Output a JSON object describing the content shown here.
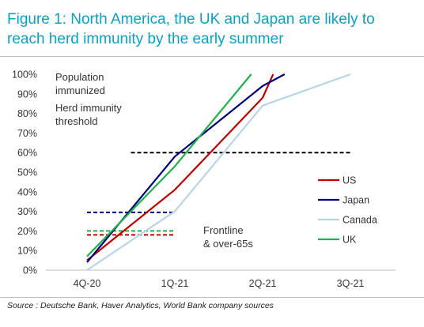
{
  "figure": {
    "title": "Figure 1: North America, the UK and Japan are likely to reach herd immunity by the early summer",
    "source": "Source : Deutsche Bank, Haver Analytics, World Bank company sources"
  },
  "chart_data": {
    "type": "line",
    "categories": [
      "4Q-20",
      "1Q-21",
      "2Q-21",
      "3Q-21"
    ],
    "xlim": [
      0,
      3
    ],
    "ylim": [
      0,
      100
    ],
    "yticks": [
      "0%",
      "10%",
      "20%",
      "30%",
      "40%",
      "50%",
      "60%",
      "70%",
      "80%",
      "90%",
      "100%"
    ],
    "grid": false,
    "legend": "right",
    "series": [
      {
        "name": "US",
        "color": "#c00000",
        "points": [
          [
            0,
            5
          ],
          [
            1,
            41
          ],
          [
            2,
            88
          ],
          [
            2.12,
            100
          ]
        ]
      },
      {
        "name": "Japan",
        "color": "#00007f",
        "points": [
          [
            0,
            4
          ],
          [
            1,
            58
          ],
          [
            2,
            94
          ],
          [
            2.25,
            100
          ]
        ]
      },
      {
        "name": "Canada",
        "color": "#b7d4ea",
        "points": [
          [
            0,
            0
          ],
          [
            1,
            30
          ],
          [
            2,
            84
          ],
          [
            3,
            100
          ]
        ]
      },
      {
        "name": "UK",
        "color": "#1db24b",
        "points": [
          [
            0,
            7
          ],
          [
            1,
            53
          ],
          [
            1.87,
            100
          ]
        ]
      }
    ],
    "reference_lines": [
      {
        "color": "#000000",
        "value": 60,
        "x": [
          0.5,
          3
        ]
      },
      {
        "color": "#00007f",
        "value": 29.5,
        "x": [
          0,
          1
        ]
      },
      {
        "color": "#1db24b",
        "value": 20,
        "x": [
          0,
          1
        ]
      },
      {
        "color": "#c00000",
        "value": 18,
        "x": [
          0,
          1
        ]
      }
    ],
    "annotations": [
      {
        "id": "population",
        "lines": [
          "Population",
          "immunized"
        ]
      },
      {
        "id": "herd",
        "lines": [
          "Herd immunity",
          "threshold"
        ]
      },
      {
        "id": "frontline",
        "lines": [
          "Frontline",
          "& over-65s"
        ]
      }
    ]
  }
}
